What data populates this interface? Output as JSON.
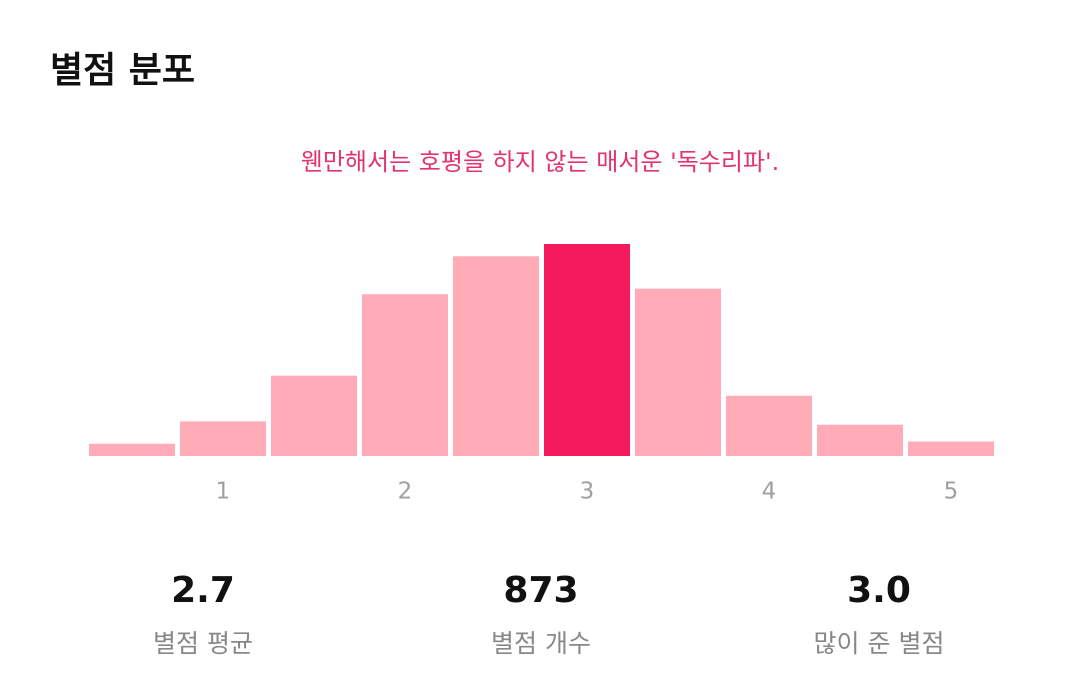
{
  "header": {
    "title": "별점 분포",
    "subtitle": "웬만해서는 호평을 하지 않는 매서운 '독수리파'."
  },
  "chart_data": {
    "type": "bar",
    "categories": [
      null,
      1,
      null,
      2,
      null,
      3,
      null,
      4,
      null,
      5
    ],
    "values": [
      11,
      31,
      72,
      145,
      179,
      190,
      150,
      54,
      28,
      13
    ],
    "colors": [
      "#ffabb8",
      "#ffabb8",
      "#ffabb8",
      "#ffabb8",
      "#ffabb8",
      "#f5195e",
      "#ffabb8",
      "#ffabb8",
      "#ffabb8",
      "#ffabb8"
    ],
    "ylim": [
      0,
      190
    ]
  },
  "stats": [
    {
      "value": "2.7",
      "label": "별점 평균"
    },
    {
      "value": "873",
      "label": "별점 개수"
    },
    {
      "value": "3.0",
      "label": "많이 준 별점"
    }
  ]
}
